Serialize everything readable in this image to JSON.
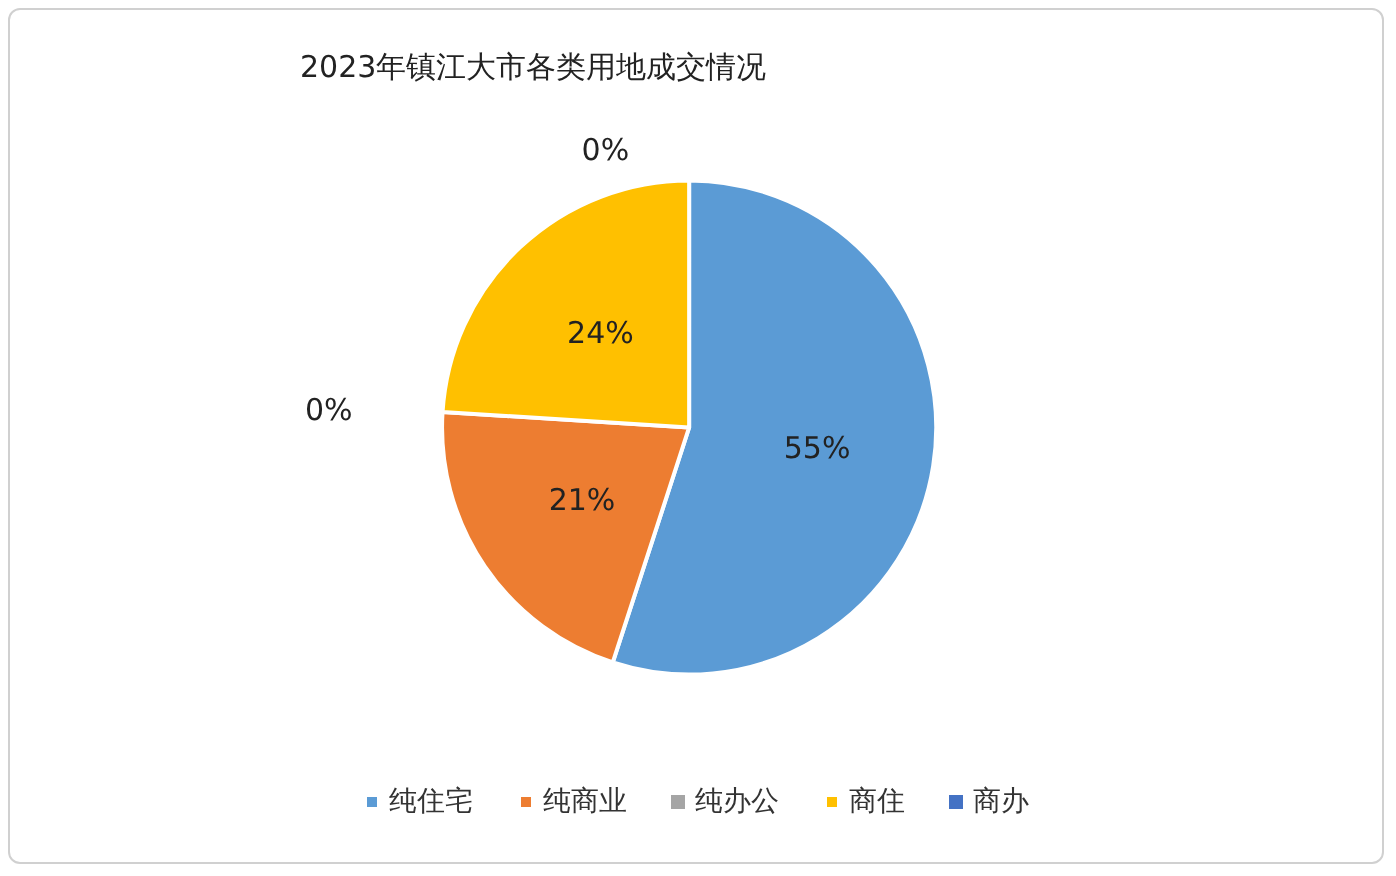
{
  "chart_data": {
    "type": "pie",
    "title": "2023年镇江大市各类用地成交情况",
    "categories": [
      "纯住宅",
      "纯商业",
      "纯办公",
      "商住",
      "商办"
    ],
    "values": [
      55,
      21,
      0,
      24,
      0
    ],
    "colors": [
      "#5b9bd5",
      "#ed7d31",
      "#a5a5a5",
      "#ffc000",
      "#4472c4"
    ],
    "value_labels": [
      "55%",
      "21%",
      "0%",
      "24%",
      "0%"
    ],
    "legend": "bottom"
  }
}
